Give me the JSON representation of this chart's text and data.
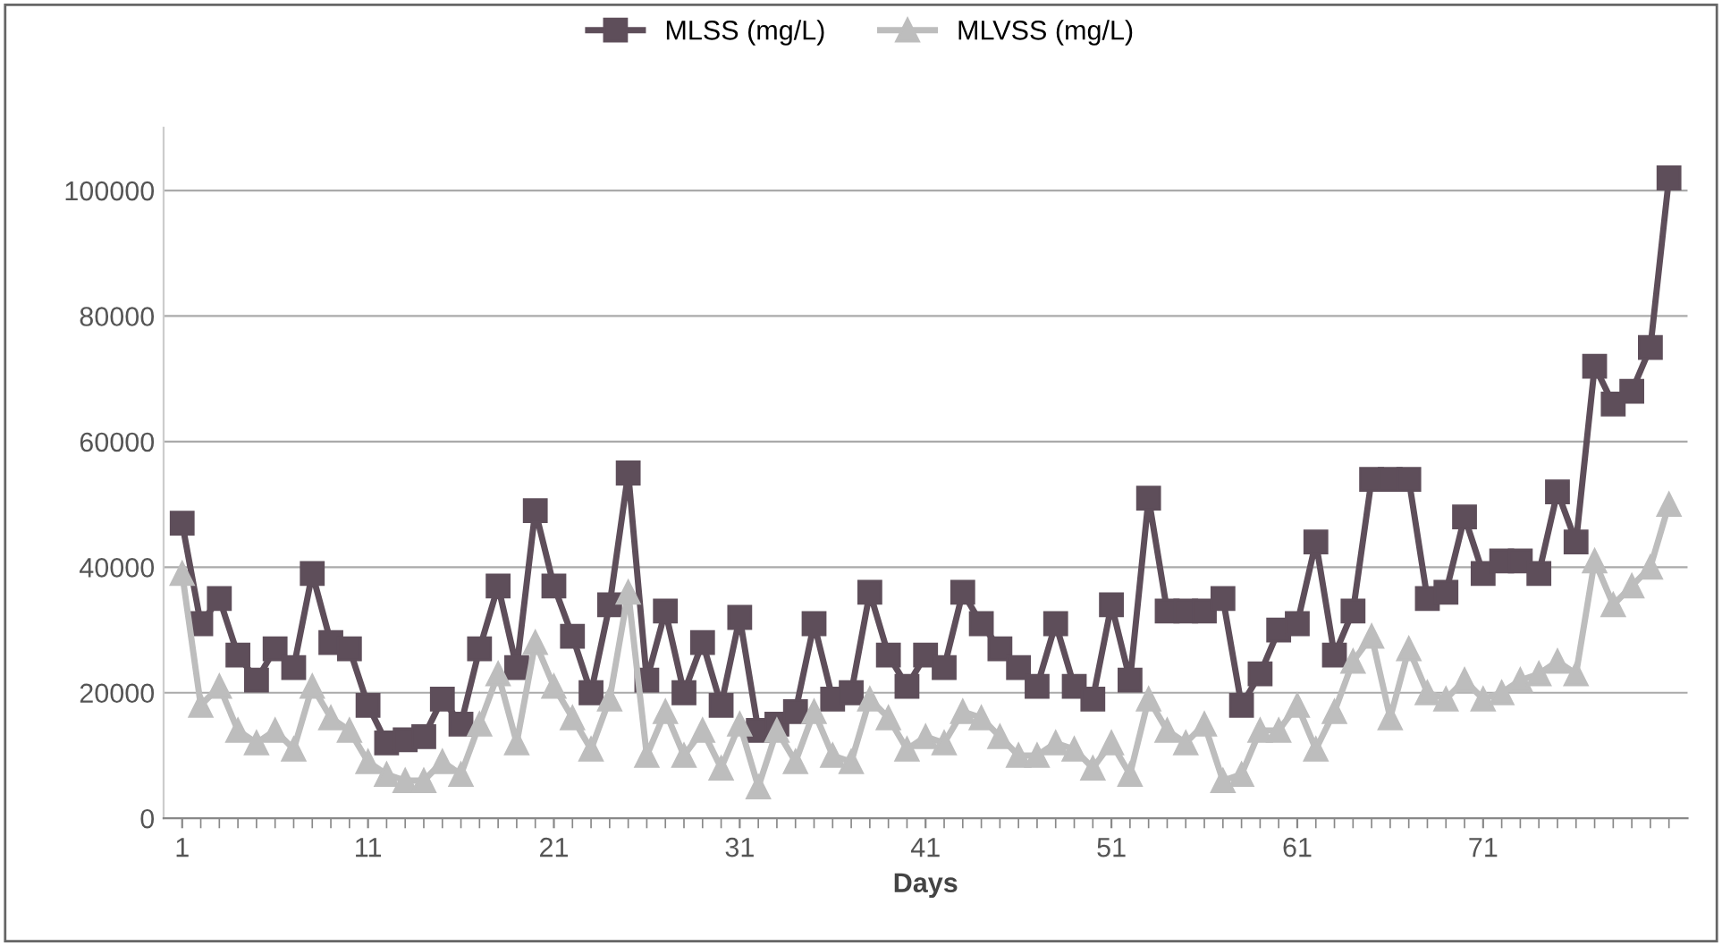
{
  "chart_data": {
    "type": "line",
    "xlabel": "Days",
    "categories": [
      "1",
      null,
      null,
      null,
      null,
      null,
      null,
      null,
      null,
      null,
      "11",
      null,
      null,
      null,
      null,
      null,
      null,
      null,
      null,
      null,
      "21",
      null,
      null,
      null,
      null,
      null,
      null,
      null,
      null,
      null,
      "31",
      null,
      null,
      null,
      null,
      null,
      null,
      null,
      null,
      null,
      "41",
      null,
      null,
      null,
      null,
      null,
      null,
      null,
      null,
      null,
      "51",
      null,
      null,
      null,
      null,
      null,
      null,
      null,
      null,
      null,
      "61",
      null,
      null,
      null,
      null,
      null,
      null,
      null,
      null,
      null,
      "71",
      null,
      null,
      null,
      null,
      null,
      null,
      null,
      null,
      null,
      null
    ],
    "series": [
      {
        "name": "MLSS (mg/L)",
        "color": "#5e4e5a",
        "marker": "square",
        "values": [
          47000,
          31000,
          35000,
          26000,
          22000,
          27000,
          24000,
          39000,
          28000,
          27000,
          18000,
          12000,
          12500,
          13000,
          19000,
          15000,
          27000,
          37000,
          24000,
          49000,
          37000,
          29000,
          20000,
          34000,
          55000,
          22000,
          33000,
          20000,
          28000,
          18000,
          32000,
          14000,
          15000,
          17000,
          31000,
          19000,
          20000,
          36000,
          26000,
          21000,
          26000,
          24000,
          36000,
          31000,
          27000,
          24000,
          21000,
          31000,
          21000,
          19000,
          34000,
          22000,
          51000,
          33000,
          33000,
          33000,
          35000,
          18000,
          23000,
          30000,
          31000,
          44000,
          26000,
          33000,
          54000,
          54000,
          54000,
          35000,
          36000,
          48000,
          39000,
          41000,
          41000,
          39000,
          52000,
          44000,
          72000,
          66000,
          68000,
          75000,
          102000
        ]
      },
      {
        "name": "MLVSS (mg/L)",
        "color": "#bdbdbd",
        "marker": "triangle",
        "values": [
          39000,
          18000,
          21000,
          14000,
          12000,
          14000,
          11000,
          21000,
          16000,
          14000,
          9000,
          7000,
          6000,
          6000,
          9000,
          7000,
          15000,
          23000,
          12000,
          28000,
          21000,
          16000,
          11000,
          19000,
          36000,
          10000,
          17000,
          10000,
          14000,
          8000,
          15000,
          5000,
          14000,
          9000,
          17000,
          10000,
          9000,
          19000,
          16000,
          11000,
          13000,
          12000,
          17000,
          16000,
          13000,
          10000,
          10000,
          12000,
          11000,
          8000,
          12000,
          7000,
          19000,
          14000,
          12000,
          15000,
          6000,
          7000,
          14000,
          14000,
          18000,
          11000,
          17000,
          25000,
          29000,
          16000,
          27000,
          20000,
          19000,
          22000,
          19000,
          20000,
          22000,
          23000,
          25000,
          23000,
          41000,
          34000,
          37000,
          40000,
          50000
        ]
      }
    ],
    "ylim": [
      0,
      110000
    ],
    "yticks": [
      0,
      20000,
      40000,
      60000,
      80000,
      100000
    ],
    "grid": "y",
    "legend": "top",
    "line_style": "solid"
  }
}
